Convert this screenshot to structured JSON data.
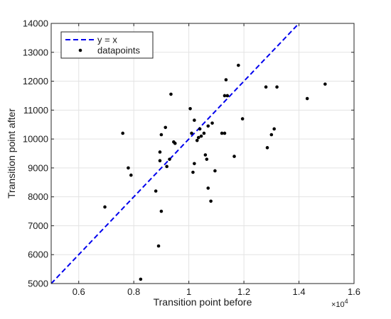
{
  "chart_data": {
    "type": "scatter",
    "xlabel": "Transition point before",
    "ylabel": "Transition point after",
    "x_exponent_label": "×10",
    "x_exponent_power": "4",
    "xlim": [
      5000,
      16000
    ],
    "ylim": [
      5000,
      14000
    ],
    "x_ticks": [
      {
        "value": 6000,
        "label": "0.6"
      },
      {
        "value": 8000,
        "label": "0.8"
      },
      {
        "value": 10000,
        "label": "1"
      },
      {
        "value": 12000,
        "label": "1.2"
      },
      {
        "value": 14000,
        "label": "1.4"
      },
      {
        "value": 16000,
        "label": "1.6"
      }
    ],
    "y_ticks": [
      {
        "value": 5000,
        "label": "5000"
      },
      {
        "value": 6000,
        "label": "6000"
      },
      {
        "value": 7000,
        "label": "7000"
      },
      {
        "value": 8000,
        "label": "8000"
      },
      {
        "value": 9000,
        "label": "9000"
      },
      {
        "value": 10000,
        "label": "10000"
      },
      {
        "value": 11000,
        "label": "11000"
      },
      {
        "value": 12000,
        "label": "12000"
      },
      {
        "value": 13000,
        "label": "13000"
      },
      {
        "value": 14000,
        "label": "14000"
      }
    ],
    "grid": true,
    "legend_position": "top-left",
    "series": [
      {
        "name": "y = x",
        "kind": "line",
        "style": "dashed",
        "color": "#0000ee",
        "points": [
          [
            5000,
            5000
          ],
          [
            14000,
            14000
          ]
        ]
      },
      {
        "name": "datapoints",
        "kind": "scatter",
        "color": "#000000",
        "points": [
          [
            6950,
            7650
          ],
          [
            7600,
            10200
          ],
          [
            7800,
            9000
          ],
          [
            7900,
            8750
          ],
          [
            8250,
            5150
          ],
          [
            8800,
            8200
          ],
          [
            8900,
            6300
          ],
          [
            8950,
            9250
          ],
          [
            8950,
            9550
          ],
          [
            9000,
            7500
          ],
          [
            9000,
            10150
          ],
          [
            9150,
            10400
          ],
          [
            9200,
            9050
          ],
          [
            9300,
            9300
          ],
          [
            9350,
            11550
          ],
          [
            9450,
            9900
          ],
          [
            9500,
            9850
          ],
          [
            10050,
            11050
          ],
          [
            10100,
            10200
          ],
          [
            10150,
            8850
          ],
          [
            10200,
            10650
          ],
          [
            10200,
            9150
          ],
          [
            10300,
            9950
          ],
          [
            10350,
            10050
          ],
          [
            10400,
            10350
          ],
          [
            10450,
            10100
          ],
          [
            10550,
            10200
          ],
          [
            10600,
            9450
          ],
          [
            10650,
            9300
          ],
          [
            10700,
            10450
          ],
          [
            10700,
            8300
          ],
          [
            10800,
            7850
          ],
          [
            10850,
            10550
          ],
          [
            10950,
            8900
          ],
          [
            11200,
            10200
          ],
          [
            11300,
            10200
          ],
          [
            11300,
            11500
          ],
          [
            11350,
            12050
          ],
          [
            11400,
            11500
          ],
          [
            11650,
            9400
          ],
          [
            11800,
            12550
          ],
          [
            11950,
            10700
          ],
          [
            12800,
            11800
          ],
          [
            12850,
            9700
          ],
          [
            13000,
            10150
          ],
          [
            13100,
            10350
          ],
          [
            13200,
            11800
          ],
          [
            14300,
            11400
          ],
          [
            14950,
            11900
          ]
        ]
      }
    ]
  }
}
